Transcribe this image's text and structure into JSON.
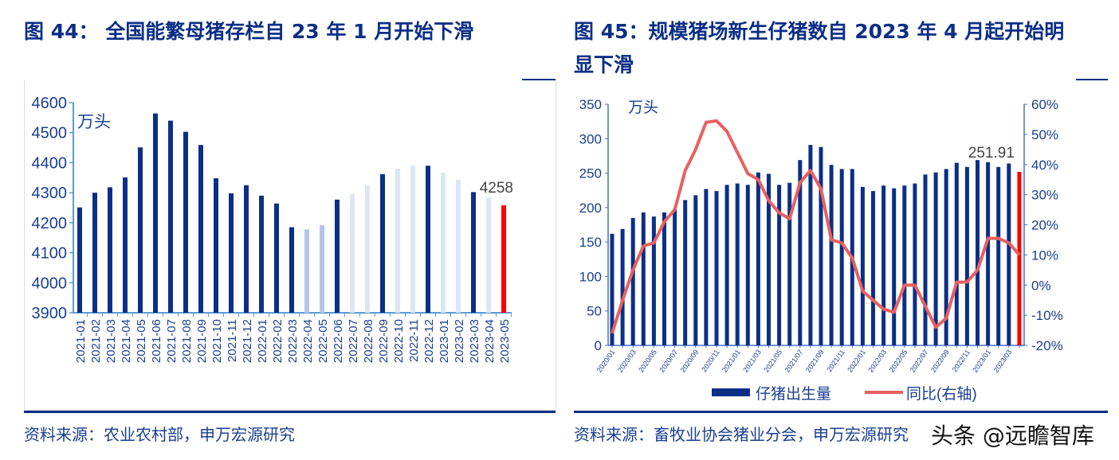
{
  "left": {
    "title": "图 44： 全国能繁母猪存栏自 23 年 1 月开始下滑",
    "source": "资料来源：农业农村部，申万宏源研究"
  },
  "right": {
    "title_line1": "图 45：规模猪场新生仔猪数自 2023 年 4 月起开始明",
    "title_line2": "显下滑",
    "source": "资料来源：畜牧业协会猪业分会，申万宏源研究"
  },
  "watermark": "头条 @远瞻智库",
  "colors": {
    "navy": "#0b2f86",
    "light_blue": "#b4c6e7",
    "pale_blue": "#dce6f4",
    "red": "#ff0000",
    "line": "#e86060"
  },
  "chart_data": [
    {
      "type": "bar",
      "unit_label": "万头",
      "ylim": [
        3900,
        4600
      ],
      "yticks": [
        3900,
        4000,
        4100,
        4200,
        4300,
        4400,
        4500,
        4600
      ],
      "categories": [
        "2021-01",
        "2021-02",
        "2021-03",
        "2021-04",
        "2021-05",
        "2021-06",
        "2021-07",
        "2021-08",
        "2021-09",
        "2021-10",
        "2021-11",
        "2021-12",
        "2022-01",
        "2022-02",
        "2022-03",
        "2022-04",
        "2022-05",
        "2022-06",
        "2022-07",
        "2022-08",
        "2022-09",
        "2022-10",
        "2022-11",
        "2022-12",
        "2023-01",
        "2023-02",
        "2023-03",
        "2023-04",
        "2023-05"
      ],
      "values": [
        4251,
        4300,
        4318,
        4351,
        4451,
        4564,
        4540,
        4503,
        4459,
        4348,
        4298,
        4325,
        4290,
        4264,
        4185,
        4178,
        4192,
        4277,
        4296,
        4324,
        4362,
        4380,
        4390,
        4390,
        4367,
        4343,
        4302,
        4284,
        4258
      ],
      "bar_colors": [
        "navy",
        "navy",
        "navy",
        "navy",
        "navy",
        "navy",
        "navy",
        "navy",
        "navy",
        "navy",
        "navy",
        "navy",
        "navy",
        "navy",
        "navy",
        "light_blue",
        "light_blue",
        "navy",
        "pale_blue",
        "pale_blue",
        "navy",
        "pale_blue",
        "pale_blue",
        "navy",
        "pale_blue",
        "pale_blue",
        "navy",
        "pale_blue",
        "red"
      ],
      "data_label": "4258"
    },
    {
      "type": "bar+line",
      "unit_label": "万头",
      "ylim": [
        0,
        350
      ],
      "yticks": [
        0,
        50,
        100,
        150,
        200,
        250,
        300,
        350
      ],
      "y2lim": [
        -20,
        60
      ],
      "y2ticks": [
        "-20%",
        "-10%",
        "0%",
        "10%",
        "20%",
        "30%",
        "40%",
        "50%",
        "60%"
      ],
      "categories": [
        "2020/01",
        "2020/02",
        "2020/03",
        "2020/04",
        "2020/05",
        "2020/06",
        "2020/07",
        "2020/08",
        "2020/09",
        "2020/10",
        "2020/11",
        "2020/12",
        "2021/01",
        "2021/02",
        "2021/03",
        "2021/04",
        "2021/05",
        "2021/06",
        "2021/07",
        "2021/08",
        "2021/09",
        "2021/10",
        "2021/11",
        "2021/12",
        "2022/01",
        "2022/02",
        "2022/03",
        "2022/04",
        "2022/05",
        "2022/06",
        "2022/07",
        "2022/08",
        "2022/09",
        "2022/10",
        "2022/11",
        "2022/12",
        "2023/01",
        "2023/02",
        "2023/03",
        "2023/04"
      ],
      "xtick_labels": [
        "2020/01",
        "2020/03",
        "2020/05",
        "2020/07",
        "2020/09",
        "2020/11",
        "2021/01",
        "2021/03",
        "2021/05",
        "2021/07",
        "2021/09",
        "2021/11",
        "2022/01",
        "2022/03",
        "2022/05",
        "2022/07",
        "2022/09",
        "2022/11",
        "2023/01",
        "2023/03"
      ],
      "series": [
        {
          "name": "仔猪出生量",
          "type": "bar",
          "values": [
            162,
            169,
            185,
            193,
            187,
            193,
            198,
            211,
            218,
            227,
            224,
            233,
            235,
            233,
            251,
            249,
            233,
            236,
            269,
            291,
            288,
            262,
            256,
            256,
            230,
            224,
            232,
            228,
            232,
            235,
            248,
            251,
            256,
            265,
            259,
            269,
            266,
            259,
            264,
            251.91
          ]
        },
        {
          "name": "同比(右轴)",
          "type": "line",
          "values": [
            -16,
            -5,
            5,
            13,
            14,
            21,
            25,
            38,
            45,
            54,
            54.5,
            51,
            44,
            37,
            35,
            28,
            24,
            22,
            34,
            38,
            32,
            15,
            14,
            9,
            -2,
            -5,
            -8,
            -9,
            0,
            0,
            -7,
            -14,
            -11,
            1,
            1,
            5,
            15.5,
            15.5,
            14,
            10
          ]
        }
      ],
      "data_label": "251.91"
    }
  ]
}
